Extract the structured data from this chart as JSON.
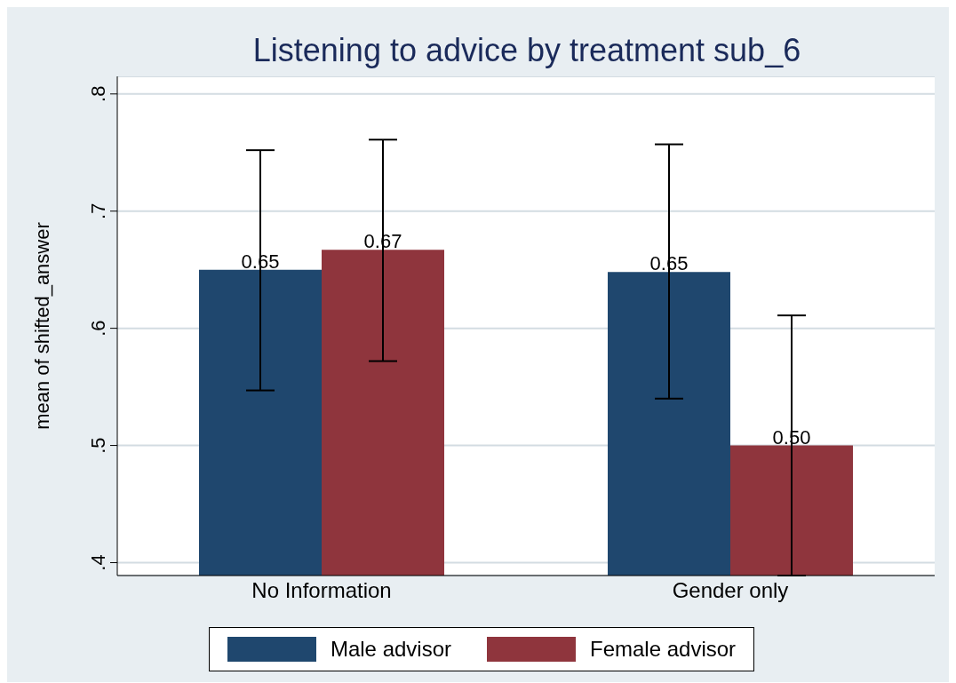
{
  "chart_data": {
    "type": "bar",
    "title": "Listening to advice by treatment sub_6",
    "ylabel": "mean of shifted_answer",
    "categories": [
      "No Information",
      "Gender only"
    ],
    "series": [
      {
        "name": "Male advisor",
        "color": "#1f476e",
        "values": [
          0.65,
          0.648
        ],
        "errors": [
          [
            0.547,
            0.752
          ],
          [
            0.54,
            0.757
          ]
        ],
        "value_labels": [
          "0.65",
          "0.65"
        ]
      },
      {
        "name": "Female advisor",
        "color": "#8f353d",
        "values": [
          0.667,
          0.5
        ],
        "errors": [
          [
            0.572,
            0.761
          ],
          [
            0.389,
            0.611
          ]
        ],
        "value_labels": [
          "0.67",
          "0.50"
        ]
      }
    ],
    "ylim": [
      0.389,
      0.815
    ],
    "yticks": [
      {
        "value": 0.4,
        "label": ".4"
      },
      {
        "value": 0.5,
        "label": ".5"
      },
      {
        "value": 0.6,
        "label": ".6"
      },
      {
        "value": 0.7,
        "label": ".7"
      },
      {
        "value": 0.8,
        "label": ".8"
      }
    ],
    "grid": "y",
    "legend": "bottom"
  }
}
